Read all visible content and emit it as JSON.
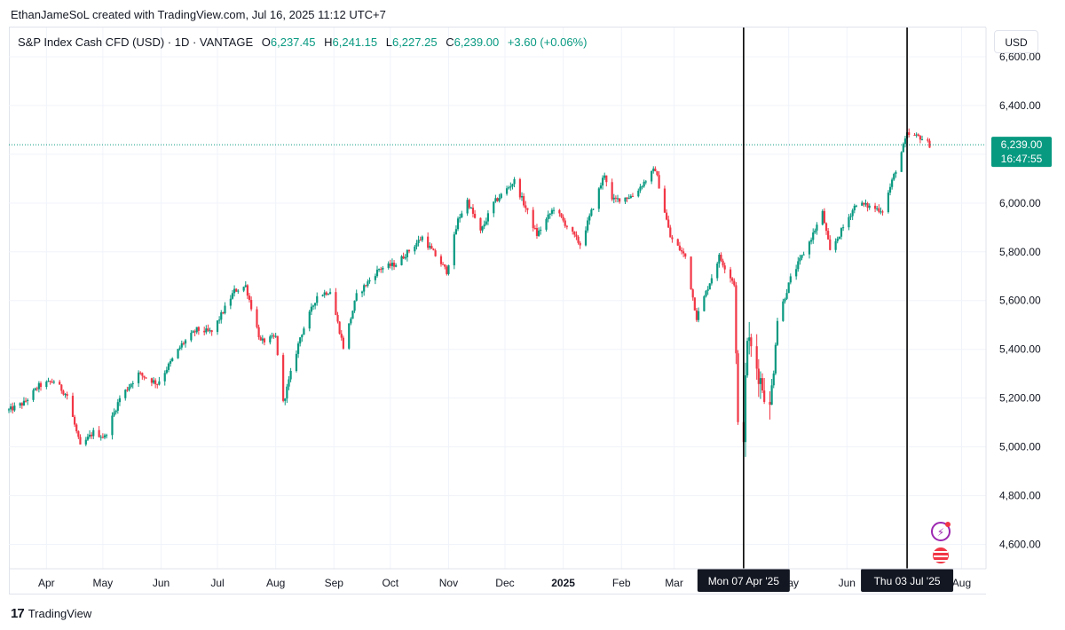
{
  "header": {
    "credit": "EthanJameSoL created with TradingView.com, Jul 16, 2025 11:12 UTC+7"
  },
  "legend": {
    "symbol": "S&P Index Cash CFD (USD) · 1D · VANTAGE",
    "o_label": "O",
    "o_value": "6,237.45",
    "h_label": "H",
    "h_value": "6,241.15",
    "l_label": "L",
    "l_value": "6,227.25",
    "c_label": "C",
    "c_value": "6,239.00",
    "change": "+3.60 (+0.06%)"
  },
  "currency_button": "USD",
  "footer": {
    "logo": "TradingView"
  },
  "colors": {
    "up": "#089981",
    "down": "#f23645",
    "price_label": "#089981",
    "crosshair": "#000000"
  },
  "chart_data": {
    "type": "candlestick",
    "symbol": "S&P Index Cash CFD (USD)",
    "interval": "1D",
    "y_range": [
      4500,
      6720
    ],
    "y_ticks": [
      4600,
      4800,
      5000,
      5200,
      5400,
      5600,
      5800,
      6000,
      6200,
      6400,
      6600
    ],
    "y_tick_labels": [
      "4,600.00",
      "4,800.00",
      "5,000.00",
      "5,200.00",
      "5,400.00",
      "5,600.00",
      "5,800.00",
      "6,000.00",
      "",
      "6,400.00",
      "6,600.00"
    ],
    "x_range": [
      "2024-03-12",
      "2025-08-14"
    ],
    "x_ticks": [
      {
        "date": "2024-04-01",
        "label": "Apr"
      },
      {
        "date": "2024-05-01",
        "label": "May"
      },
      {
        "date": "2024-06-01",
        "label": "Jun"
      },
      {
        "date": "2024-07-01",
        "label": "Jul"
      },
      {
        "date": "2024-08-01",
        "label": "Aug"
      },
      {
        "date": "2024-09-01",
        "label": "Sep"
      },
      {
        "date": "2024-10-01",
        "label": "Oct"
      },
      {
        "date": "2024-11-01",
        "label": "Nov"
      },
      {
        "date": "2024-12-01",
        "label": "Dec"
      },
      {
        "date": "2025-01-01",
        "label": "2025"
      },
      {
        "date": "2025-02-01",
        "label": "Feb"
      },
      {
        "date": "2025-03-01",
        "label": "Mar"
      },
      {
        "date": "2025-05-01",
        "label": "May"
      },
      {
        "date": "2025-06-01",
        "label": "Jun"
      },
      {
        "date": "2025-08-01",
        "label": "Aug"
      }
    ],
    "price_path": [
      [
        "2024-03-12",
        5150
      ],
      [
        "2024-03-20",
        5180
      ],
      [
        "2024-03-28",
        5250
      ],
      [
        "2024-04-05",
        5270
      ],
      [
        "2024-04-12",
        5210
      ],
      [
        "2024-04-19",
        5000
      ],
      [
        "2024-04-26",
        5060
      ],
      [
        "2024-05-02",
        5040
      ],
      [
        "2024-05-10",
        5200
      ],
      [
        "2024-05-20",
        5300
      ],
      [
        "2024-05-30",
        5260
      ],
      [
        "2024-06-12",
        5420
      ],
      [
        "2024-06-20",
        5480
      ],
      [
        "2024-06-28",
        5470
      ],
      [
        "2024-07-10",
        5640
      ],
      [
        "2024-07-16",
        5660
      ],
      [
        "2024-07-24",
        5430
      ],
      [
        "2024-08-01",
        5450
      ],
      [
        "2024-08-05",
        5180
      ],
      [
        "2024-08-14",
        5450
      ],
      [
        "2024-08-23",
        5620
      ],
      [
        "2024-08-30",
        5640
      ],
      [
        "2024-09-06",
        5410
      ],
      [
        "2024-09-13",
        5620
      ],
      [
        "2024-09-25",
        5730
      ],
      [
        "2024-10-04",
        5750
      ],
      [
        "2024-10-18",
        5860
      ],
      [
        "2024-10-31",
        5720
      ],
      [
        "2024-11-06",
        5930
      ],
      [
        "2024-11-11",
        6010
      ],
      [
        "2024-11-18",
        5880
      ],
      [
        "2024-11-25",
        6000
      ],
      [
        "2024-12-06",
        6090
      ],
      [
        "2024-12-18",
        5870
      ],
      [
        "2024-12-27",
        5980
      ],
      [
        "2025-01-10",
        5830
      ],
      [
        "2025-01-23",
        6120
      ],
      [
        "2025-01-27",
        6010
      ],
      [
        "2025-02-07",
        6030
      ],
      [
        "2025-02-19",
        6140
      ],
      [
        "2025-02-27",
        5860
      ],
      [
        "2025-03-07",
        5780
      ],
      [
        "2025-03-13",
        5530
      ],
      [
        "2025-03-25",
        5780
      ],
      [
        "2025-04-02",
        5670
      ],
      [
        "2025-04-04",
        5070
      ],
      [
        "2025-04-07",
        5060
      ],
      [
        "2025-04-09",
        5450
      ],
      [
        "2025-04-21",
        5150
      ],
      [
        "2025-04-25",
        5520
      ],
      [
        "2025-05-02",
        5690
      ],
      [
        "2025-05-12",
        5840
      ],
      [
        "2025-05-19",
        5960
      ],
      [
        "2025-05-23",
        5800
      ],
      [
        "2025-06-06",
        6000
      ],
      [
        "2025-06-20",
        5970
      ],
      [
        "2025-07-03",
        6280
      ],
      [
        "2025-07-10",
        6270
      ],
      [
        "2025-07-15",
        6239
      ]
    ],
    "last_price": 6239.0,
    "last_price_label": "6,239.00",
    "countdown": "16:47:55",
    "crosshairs": [
      {
        "date": "2025-04-07",
        "label": "Mon 07 Apr '25"
      },
      {
        "date": "2025-07-03",
        "label": "Thu 03 Jul '25"
      }
    ]
  }
}
